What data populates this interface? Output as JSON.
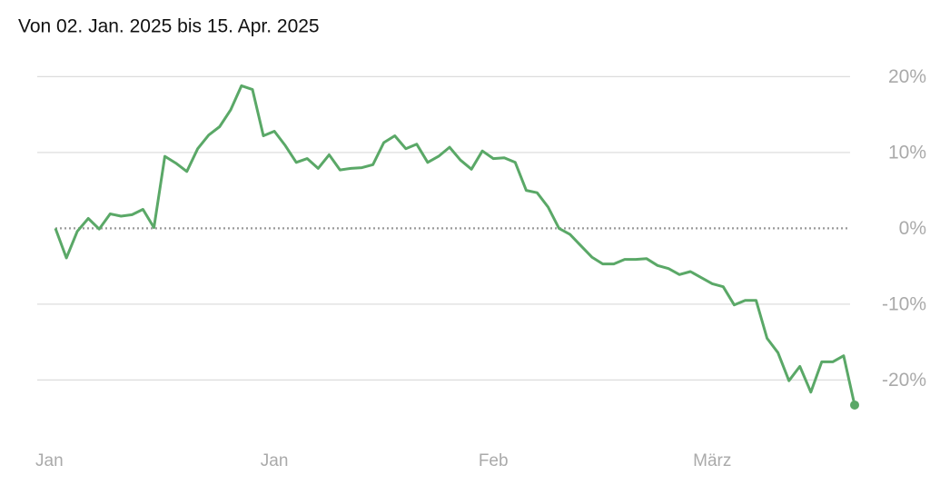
{
  "chart_data": {
    "type": "line",
    "title": "Von 02. Jan. 2025 bis 15. Apr. 2025",
    "categories": [
      "Jan",
      null,
      null,
      null,
      null,
      null,
      null,
      null,
      null,
      null,
      null,
      null,
      null,
      null,
      null,
      null,
      null,
      null,
      null,
      null,
      "Jan",
      null,
      null,
      null,
      null,
      null,
      null,
      null,
      null,
      null,
      null,
      null,
      null,
      null,
      null,
      null,
      null,
      null,
      null,
      null,
      "Feb",
      null,
      null,
      null,
      null,
      null,
      null,
      null,
      null,
      null,
      null,
      null,
      null,
      null,
      null,
      null,
      null,
      null,
      null,
      null,
      "März",
      null,
      null,
      null,
      null,
      null,
      null,
      null,
      null,
      null,
      null,
      null,
      null,
      null
    ],
    "values": [
      0,
      -3.9,
      -0.4,
      1.3,
      -0.1,
      1.9,
      1.6,
      1.8,
      2.5,
      0.1,
      9.5,
      8.6,
      7.5,
      10.5,
      12.3,
      13.4,
      15.6,
      18.8,
      18.3,
      12.2,
      12.8,
      10.9,
      8.7,
      9.2,
      7.9,
      9.7,
      7.7,
      7.9,
      8.0,
      8.4,
      11.3,
      12.2,
      10.5,
      11.1,
      8.7,
      9.5,
      10.7,
      9.0,
      7.8,
      10.2,
      9.2,
      9.3,
      8.7,
      5.0,
      4.7,
      2.8,
      0,
      -0.8,
      -2.3,
      -3.8,
      -4.7,
      -4.7,
      -4.1,
      -4.1,
      -4.0,
      -4.9,
      -5.3,
      -6.1,
      -5.7,
      -6.5,
      -7.3,
      -7.7,
      -10.1,
      -9.5,
      -9.5,
      -14.5,
      -16.4,
      -20.1,
      -18.2,
      -21.6,
      -17.6,
      -17.6,
      -16.8,
      -23.3
    ],
    "color": "#5aa867",
    "ylim": [
      -26,
      24
    ],
    "yticks": [
      {
        "value": -20,
        "label": "-20%"
      },
      {
        "value": -10,
        "label": "-10%"
      },
      {
        "value": 0,
        "label": "0%"
      },
      {
        "value": 10,
        "label": "10%"
      },
      {
        "value": 20,
        "label": "20%"
      }
    ],
    "grid": true
  }
}
